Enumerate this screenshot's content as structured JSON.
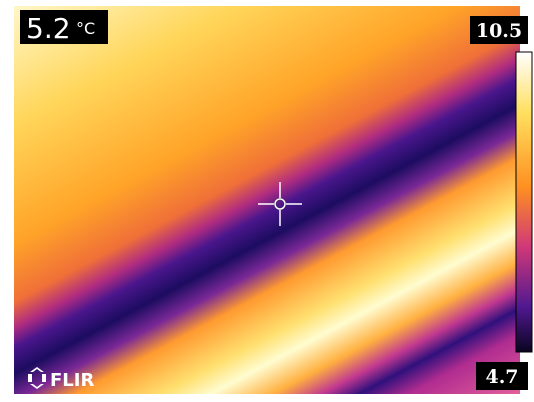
{
  "spot_temperature": "5.2",
  "spot_unit": "°C",
  "scale_max": "10.5",
  "scale_min": "4.7",
  "brand": "FLIR"
}
